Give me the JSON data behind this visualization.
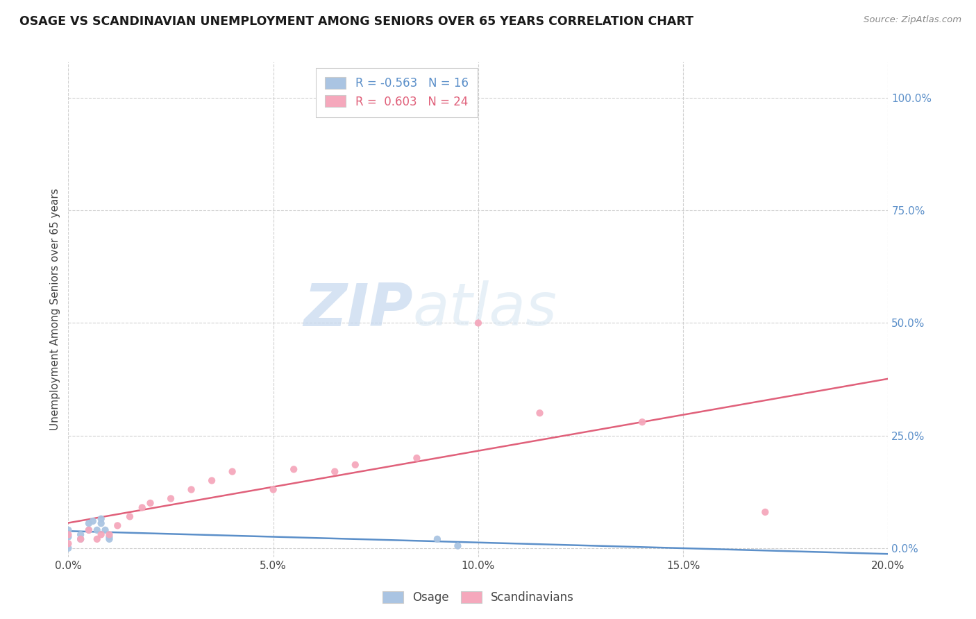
{
  "title": "OSAGE VS SCANDINAVIAN UNEMPLOYMENT AMONG SENIORS OVER 65 YEARS CORRELATION CHART",
  "source": "Source: ZipAtlas.com",
  "xlim": [
    0.0,
    0.2
  ],
  "ylim": [
    -0.02,
    1.08
  ],
  "ylabel": "Unemployment Among Seniors over 65 years",
  "watermark_zip": "ZIP",
  "watermark_atlas": "atlas",
  "legend_osage_R": "-0.563",
  "legend_osage_N": "16",
  "legend_scand_R": "0.603",
  "legend_scand_N": "24",
  "osage_color": "#aac4e2",
  "scand_color": "#f5a8bc",
  "osage_line_color": "#5b8fc9",
  "scand_line_color": "#e0607a",
  "osage_x": [
    0.0,
    0.0,
    0.0,
    0.003,
    0.003,
    0.005,
    0.005,
    0.006,
    0.007,
    0.008,
    0.008,
    0.009,
    0.01,
    0.01,
    0.09,
    0.095
  ],
  "osage_y": [
    0.0,
    0.025,
    0.04,
    0.02,
    0.03,
    0.04,
    0.055,
    0.06,
    0.04,
    0.055,
    0.065,
    0.04,
    0.02,
    0.025,
    0.02,
    0.005
  ],
  "scand_x": [
    0.0,
    0.0,
    0.003,
    0.005,
    0.007,
    0.008,
    0.01,
    0.012,
    0.015,
    0.018,
    0.02,
    0.025,
    0.03,
    0.035,
    0.04,
    0.05,
    0.055,
    0.065,
    0.07,
    0.085,
    0.1,
    0.115,
    0.14,
    0.17
  ],
  "scand_y": [
    0.01,
    0.03,
    0.02,
    0.04,
    0.02,
    0.03,
    0.03,
    0.05,
    0.07,
    0.09,
    0.1,
    0.11,
    0.13,
    0.15,
    0.17,
    0.13,
    0.175,
    0.17,
    0.185,
    0.2,
    0.5,
    0.3,
    0.28,
    0.08
  ],
  "grid_color": "#d0d0d0",
  "bg_color": "#ffffff",
  "title_color": "#1a1a1a",
  "axis_tick_color": "#444444",
  "right_tick_color": "#5b8fc9",
  "ylabel_color": "#444444",
  "xtick_labels": [
    "0.0%",
    "5.0%",
    "10.0%",
    "15.0%",
    "20.0%"
  ],
  "ytick_labels": [
    "0.0%",
    "25.0%",
    "50.0%",
    "75.0%",
    "100.0%"
  ],
  "xtick_values": [
    0.0,
    0.05,
    0.1,
    0.15,
    0.2
  ],
  "ytick_values": [
    0.0,
    0.25,
    0.5,
    0.75,
    1.0
  ]
}
